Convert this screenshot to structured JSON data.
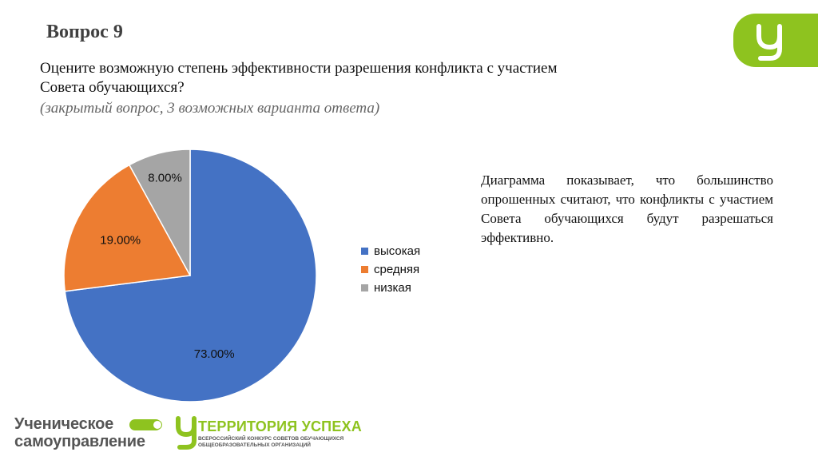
{
  "slide": {
    "title": "Вопрос 9",
    "question_line1": "Оцените возможную степень эффективности разрешения конфликта с участием",
    "question_line2": "Совета обучающихся?",
    "note": "(закрытый вопрос, 3 возможных варианта ответа)",
    "description": "Диаграмма показывает, что большинство опрошенных считают, что конфликты с участием Совета обучающихся будут разрешаться эффективно."
  },
  "footer": {
    "brand1_line1": "Ученическое",
    "brand1_line2": "самоуправление",
    "brand2_title": "ТЕРРИТОРИЯ УСПЕХА",
    "brand2_sub1": "ВСЕРОССИЙСКИЙ КОНКУРС СОВЕТОВ ОБУЧАЮЩИХСЯ",
    "brand2_sub2": "ОБЩЕОБРАЗОВАТЕЛЬНЫХ ОРГАНИЗАЦИЙ"
  },
  "colors": {
    "brand_green": "#8ec31f",
    "high": "#4472c4",
    "medium": "#ed7d31",
    "low": "#a5a5a5"
  },
  "chart_data": {
    "type": "pie",
    "title": "",
    "categories": [
      "высокая",
      "средняя",
      "низкая"
    ],
    "values": [
      73.0,
      19.0,
      8.0
    ],
    "labels": [
      "73.00%",
      "19.00%",
      "8.00%"
    ],
    "colors": [
      "#4472c4",
      "#ed7d31",
      "#a5a5a5"
    ],
    "legend_position": "right"
  }
}
